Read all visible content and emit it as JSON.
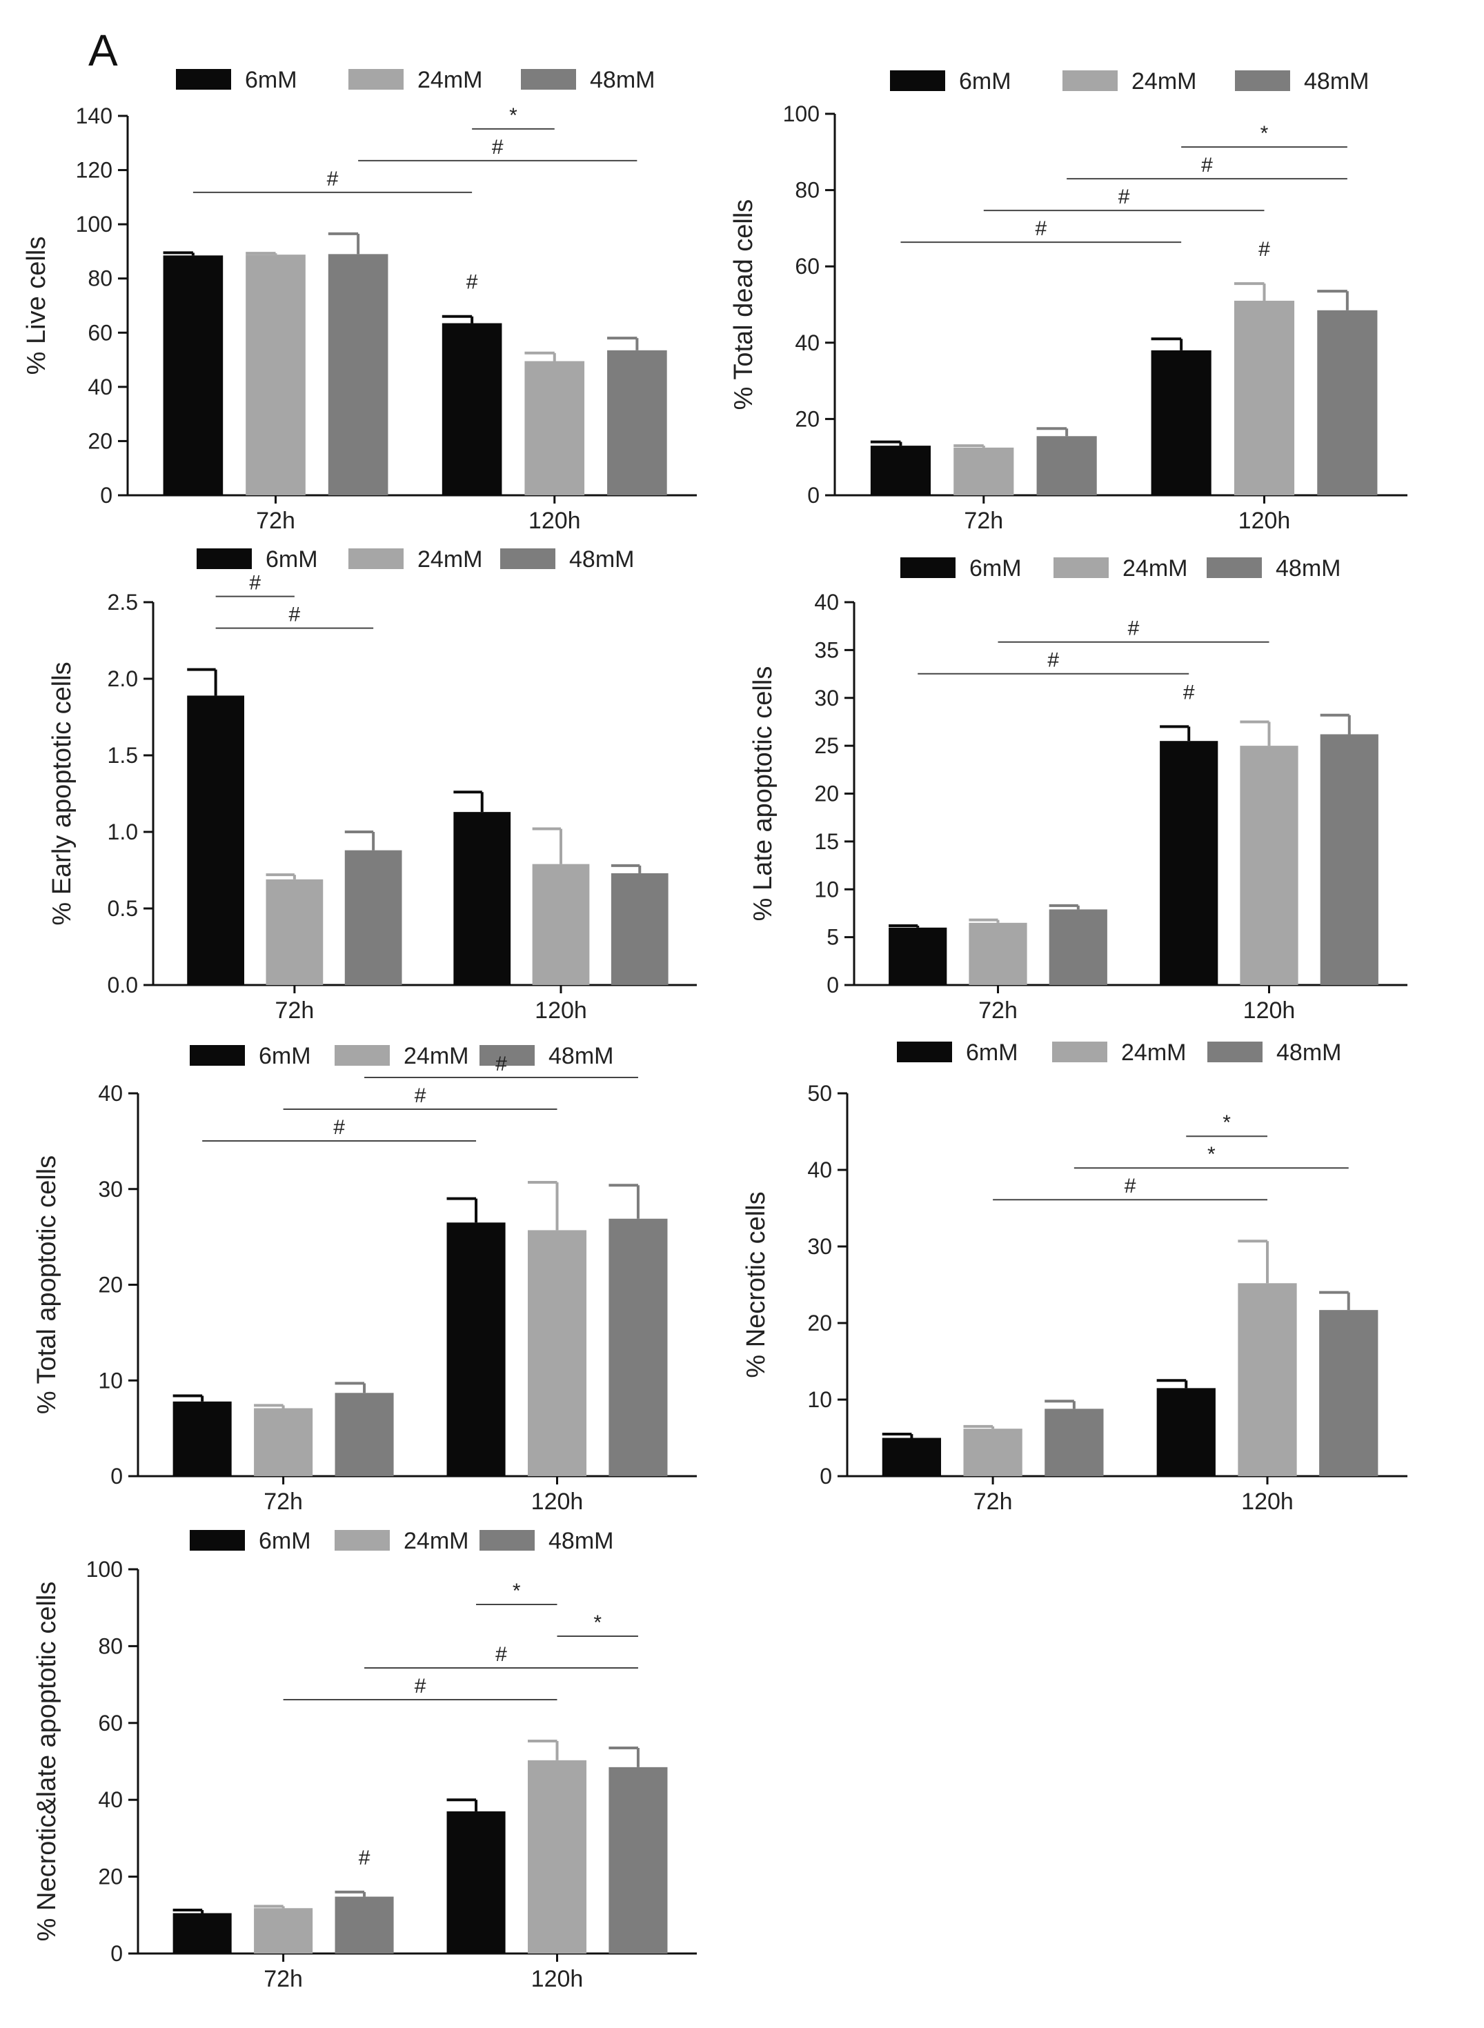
{
  "panel_label": "A",
  "colors": {
    "s6": "#0a0a0a",
    "s24": "#a6a6a6",
    "s48": "#7d7d7d"
  },
  "chart_data": [
    {
      "type": "bar",
      "ylabel": "% Live cells",
      "categories": [
        "72h",
        "120h"
      ],
      "ylim": [
        0,
        140
      ],
      "yticks": [
        "0",
        "20",
        "40",
        "60",
        "80",
        "100",
        "120",
        "140"
      ],
      "series": [
        {
          "name": "6mM",
          "values": [
            88.5,
            63.5
          ],
          "errors": [
            1.0,
            2.5
          ]
        },
        {
          "name": "24mM",
          "values": [
            88.8,
            49.5
          ],
          "errors": [
            0.5,
            3.0
          ]
        },
        {
          "name": "48mM",
          "values": [
            89.0,
            53.5
          ],
          "errors": [
            7.5,
            4.5
          ]
        }
      ],
      "annotations": [
        {
          "text": "#",
          "from": [
            1,
            0
          ],
          "to": null
        },
        {
          "text": "#",
          "from": [
            0,
            0
          ],
          "to": [
            1,
            0
          ]
        },
        {
          "text": "#",
          "from": [
            0,
            2
          ],
          "to": [
            1,
            2
          ]
        },
        {
          "text": "*",
          "from": [
            1,
            0
          ],
          "to": [
            1,
            1
          ]
        }
      ]
    },
    {
      "type": "bar",
      "ylabel": "% Total dead cells",
      "categories": [
        "72h",
        "120h"
      ],
      "ylim": [
        0,
        100
      ],
      "yticks": [
        "0",
        "20",
        "40",
        "60",
        "80",
        "100"
      ],
      "series": [
        {
          "name": "6mM",
          "values": [
            13.0,
            38.0
          ],
          "errors": [
            1.0,
            3.0
          ]
        },
        {
          "name": "24mM",
          "values": [
            12.5,
            51.0
          ],
          "errors": [
            0.5,
            4.5
          ]
        },
        {
          "name": "48mM",
          "values": [
            15.5,
            48.5
          ],
          "errors": [
            2.0,
            5.0
          ]
        }
      ],
      "annotations": [
        {
          "text": "#",
          "from": [
            0,
            0
          ],
          "to": [
            1,
            0
          ]
        },
        {
          "text": "#",
          "from": [
            0,
            1
          ],
          "to": [
            1,
            1
          ]
        },
        {
          "text": "#",
          "from": [
            0,
            2
          ],
          "to": [
            1,
            2
          ]
        },
        {
          "text": "*",
          "from": [
            1,
            0
          ],
          "to": [
            1,
            2
          ]
        },
        {
          "text": "#",
          "from": [
            1,
            1
          ],
          "to": null
        }
      ]
    },
    {
      "type": "bar",
      "ylabel": "% Early apoptotic cells",
      "categories": [
        "72h",
        "120h"
      ],
      "ylim": [
        0,
        2.5
      ],
      "yticks": [
        "0.0",
        "0.5",
        "1.0",
        "1.5",
        "2.0",
        "2.5"
      ],
      "series": [
        {
          "name": "6mM",
          "values": [
            1.89,
            1.13
          ],
          "errors": [
            0.17,
            0.13
          ]
        },
        {
          "name": "24mM",
          "values": [
            0.69,
            0.79
          ],
          "errors": [
            0.03,
            0.23
          ]
        },
        {
          "name": "48mM",
          "values": [
            0.88,
            0.73
          ],
          "errors": [
            0.12,
            0.05
          ]
        }
      ],
      "annotations": [
        {
          "text": "#",
          "from": [
            0,
            0
          ],
          "to": [
            0,
            2
          ]
        },
        {
          "text": "#",
          "from": [
            0,
            0
          ],
          "to": [
            0,
            1
          ]
        }
      ]
    },
    {
      "type": "bar",
      "ylabel": "% Late apoptotic cells",
      "categories": [
        "72h",
        "120h"
      ],
      "ylim": [
        0,
        40
      ],
      "yticks": [
        "0",
        "5",
        "10",
        "15",
        "20",
        "25",
        "30",
        "35",
        "40"
      ],
      "series": [
        {
          "name": "6mM",
          "values": [
            6.0,
            25.5
          ],
          "errors": [
            0.2,
            1.5
          ]
        },
        {
          "name": "24mM",
          "values": [
            6.5,
            25.0
          ],
          "errors": [
            0.3,
            2.5
          ]
        },
        {
          "name": "48mM",
          "values": [
            7.9,
            26.2
          ],
          "errors": [
            0.4,
            2.0
          ]
        }
      ],
      "annotations": [
        {
          "text": "#",
          "from": [
            0,
            0
          ],
          "to": [
            1,
            0
          ]
        },
        {
          "text": "#",
          "from": [
            0,
            1
          ],
          "to": [
            1,
            1
          ]
        },
        {
          "text": "#",
          "from": [
            1,
            0
          ],
          "to": null
        }
      ]
    },
    {
      "type": "bar",
      "ylabel": "% Total apoptotic cells",
      "categories": [
        "72h",
        "120h"
      ],
      "ylim": [
        0,
        40
      ],
      "yticks": [
        "0",
        "10",
        "20",
        "30",
        "40"
      ],
      "series": [
        {
          "name": "6mM",
          "values": [
            7.8,
            26.5
          ],
          "errors": [
            0.6,
            2.5
          ]
        },
        {
          "name": "24mM",
          "values": [
            7.1,
            25.7
          ],
          "errors": [
            0.3,
            5.0
          ]
        },
        {
          "name": "48mM",
          "values": [
            8.7,
            26.9
          ],
          "errors": [
            1.0,
            3.5
          ]
        }
      ],
      "annotations": [
        {
          "text": "#",
          "from": [
            0,
            0
          ],
          "to": [
            1,
            0
          ]
        },
        {
          "text": "#",
          "from": [
            0,
            1
          ],
          "to": [
            1,
            1
          ]
        },
        {
          "text": "#",
          "from": [
            0,
            2
          ],
          "to": [
            1,
            2
          ]
        }
      ]
    },
    {
      "type": "bar",
      "ylabel": "% Necrotic  cells",
      "categories": [
        "72h",
        "120h"
      ],
      "ylim": [
        0,
        50
      ],
      "yticks": [
        "0",
        "10",
        "20",
        "30",
        "40",
        "50"
      ],
      "series": [
        {
          "name": "6mM",
          "values": [
            5.0,
            11.5
          ],
          "errors": [
            0.5,
            1.0
          ]
        },
        {
          "name": "24mM",
          "values": [
            6.2,
            25.2
          ],
          "errors": [
            0.3,
            5.5
          ]
        },
        {
          "name": "48mM",
          "values": [
            8.8,
            21.7
          ],
          "errors": [
            1.0,
            2.3
          ]
        }
      ],
      "annotations": [
        {
          "text": "#",
          "from": [
            0,
            1
          ],
          "to": [
            1,
            1
          ]
        },
        {
          "text": "*",
          "from": [
            0,
            2
          ],
          "to": [
            1,
            2
          ]
        },
        {
          "text": "*",
          "from": [
            1,
            0
          ],
          "to": [
            1,
            1
          ]
        }
      ]
    },
    {
      "type": "bar",
      "ylabel": "% Necrotic&late apoptotic cells",
      "categories": [
        "72h",
        "120h"
      ],
      "ylim": [
        0,
        100
      ],
      "yticks": [
        "0",
        "20",
        "40",
        "60",
        "80",
        "100"
      ],
      "series": [
        {
          "name": "6mM",
          "values": [
            10.5,
            37.0
          ],
          "errors": [
            0.8,
            3.0
          ]
        },
        {
          "name": "24mM",
          "values": [
            11.8,
            50.3
          ],
          "errors": [
            0.5,
            5.0
          ]
        },
        {
          "name": "48mM",
          "values": [
            14.8,
            48.5
          ],
          "errors": [
            1.2,
            5.0
          ]
        }
      ],
      "annotations": [
        {
          "text": "#",
          "from": [
            0,
            2
          ],
          "to": null
        },
        {
          "text": "#",
          "from": [
            0,
            1
          ],
          "to": [
            1,
            1
          ]
        },
        {
          "text": "#",
          "from": [
            0,
            2
          ],
          "to": [
            1,
            2
          ]
        },
        {
          "text": "*",
          "from": [
            1,
            1
          ],
          "to": [
            1,
            2
          ]
        },
        {
          "text": "*",
          "from": [
            1,
            0
          ],
          "to": [
            1,
            1
          ]
        }
      ]
    }
  ]
}
